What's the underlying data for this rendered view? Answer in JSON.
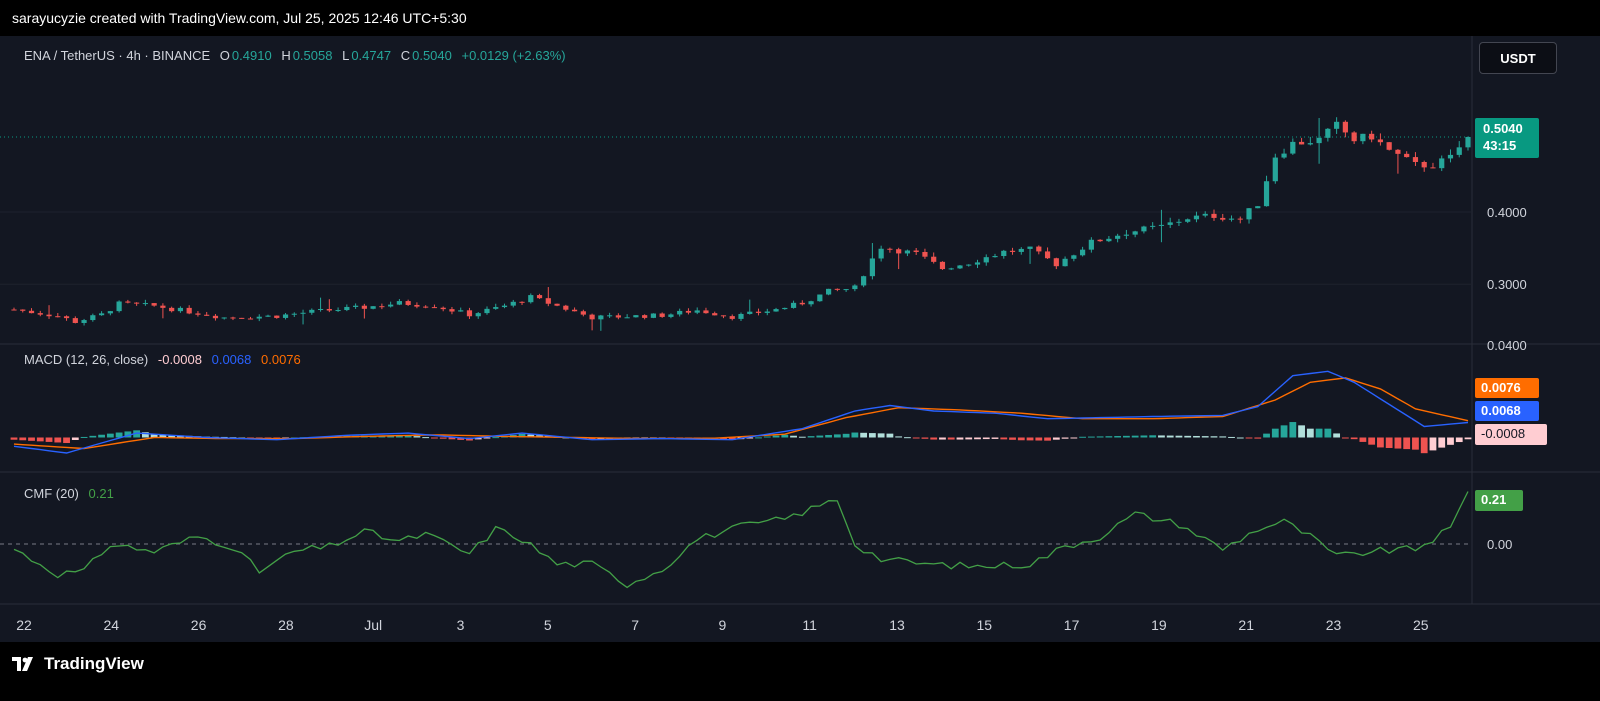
{
  "header": {
    "caption": "sarayucyzie created with TradingView.com, Jul 25, 2025 12:46 UTC+5:30"
  },
  "symbol_legend": {
    "symbol": "ENA / TetherUS · 4h · BINANCE",
    "open_label": "O",
    "open": "0.4910",
    "high_label": "H",
    "high": "0.5058",
    "low_label": "L",
    "low": "0.4747",
    "close_label": "C",
    "close": "0.5040",
    "change": "+0.0129 (+2.63%)"
  },
  "currency_button": "USDT",
  "price_tag": {
    "price": "0.5040",
    "countdown": "43:15"
  },
  "macd_legend": {
    "name": "MACD (12, 26, close)",
    "hist": "-0.0008",
    "macd": "0.0068",
    "signal": "0.0076"
  },
  "cmf_legend": {
    "name": "CMF (20)",
    "value": "0.21"
  },
  "footer": {
    "brand": "TradingView"
  },
  "colors": {
    "up": "#26a69a",
    "down": "#ef5350",
    "macd": "#2962ff",
    "signal": "#ff6d00",
    "cmf": "#43a047",
    "bg": "#131722"
  },
  "chart_data": [
    {
      "type": "candlestick",
      "title": "ENA / TetherUS · 4h · BINANCE",
      "price_axis_labels": [
        "0.4000",
        "0.3000"
      ],
      "ylim": [
        0.22,
        0.63
      ],
      "last_price": 0.504,
      "x_axis_labels": [
        "22",
        "24",
        "26",
        "28",
        "Jul",
        "3",
        "5",
        "7",
        "9",
        "11",
        "13",
        "15",
        "17",
        "19",
        "21",
        "23",
        "25"
      ],
      "close_anchors": [
        {
          "x": 0,
          "y": 0.265
        },
        {
          "x": 5,
          "y": 0.256
        },
        {
          "x": 7,
          "y": 0.248
        },
        {
          "x": 10,
          "y": 0.258
        },
        {
          "x": 12,
          "y": 0.273
        },
        {
          "x": 16,
          "y": 0.27
        },
        {
          "x": 20,
          "y": 0.262
        },
        {
          "x": 24,
          "y": 0.254
        },
        {
          "x": 30,
          "y": 0.256
        },
        {
          "x": 34,
          "y": 0.262
        },
        {
          "x": 40,
          "y": 0.268
        },
        {
          "x": 44,
          "y": 0.274
        },
        {
          "x": 48,
          "y": 0.27
        },
        {
          "x": 52,
          "y": 0.258
        },
        {
          "x": 56,
          "y": 0.27
        },
        {
          "x": 59,
          "y": 0.282
        },
        {
          "x": 62,
          "y": 0.27
        },
        {
          "x": 66,
          "y": 0.254
        },
        {
          "x": 74,
          "y": 0.257
        },
        {
          "x": 78,
          "y": 0.264
        },
        {
          "x": 82,
          "y": 0.255
        },
        {
          "x": 87,
          "y": 0.265
        },
        {
          "x": 90,
          "y": 0.274
        },
        {
          "x": 93,
          "y": 0.29
        },
        {
          "x": 96,
          "y": 0.295
        },
        {
          "x": 98,
          "y": 0.335
        },
        {
          "x": 99,
          "y": 0.352
        },
        {
          "x": 103,
          "y": 0.342
        },
        {
          "x": 106,
          "y": 0.322
        },
        {
          "x": 109,
          "y": 0.33
        },
        {
          "x": 113,
          "y": 0.345
        },
        {
          "x": 116,
          "y": 0.348
        },
        {
          "x": 119,
          "y": 0.328
        },
        {
          "x": 123,
          "y": 0.358
        },
        {
          "x": 127,
          "y": 0.372
        },
        {
          "x": 131,
          "y": 0.38
        },
        {
          "x": 134,
          "y": 0.392
        },
        {
          "x": 137,
          "y": 0.395
        },
        {
          "x": 140,
          "y": 0.39
        },
        {
          "x": 142,
          "y": 0.412
        },
        {
          "x": 144,
          "y": 0.478
        },
        {
          "x": 146,
          "y": 0.495
        },
        {
          "x": 149,
          "y": 0.5
        },
        {
          "x": 151,
          "y": 0.52
        },
        {
          "x": 153,
          "y": 0.5
        },
        {
          "x": 155,
          "y": 0.505
        },
        {
          "x": 157,
          "y": 0.485
        },
        {
          "x": 160,
          "y": 0.465
        },
        {
          "x": 162,
          "y": 0.465
        },
        {
          "x": 164,
          "y": 0.475
        },
        {
          "x": 166,
          "y": 0.504
        }
      ]
    },
    {
      "type": "line+bar",
      "title": "MACD (12, 26, close)",
      "series": [
        {
          "name": "MACD",
          "anchors": [
            {
              "x": 0,
              "y": -0.004
            },
            {
              "x": 6,
              "y": -0.007
            },
            {
              "x": 14,
              "y": 0.002
            },
            {
              "x": 22,
              "y": 0.0
            },
            {
              "x": 30,
              "y": -0.001
            },
            {
              "x": 38,
              "y": 0.001
            },
            {
              "x": 45,
              "y": 0.002
            },
            {
              "x": 52,
              "y": -0.0005
            },
            {
              "x": 58,
              "y": 0.002
            },
            {
              "x": 66,
              "y": -0.001
            },
            {
              "x": 74,
              "y": -0.0005
            },
            {
              "x": 82,
              "y": -0.001
            },
            {
              "x": 90,
              "y": 0.004
            },
            {
              "x": 96,
              "y": 0.012
            },
            {
              "x": 100,
              "y": 0.0145
            },
            {
              "x": 105,
              "y": 0.012
            },
            {
              "x": 112,
              "y": 0.011
            },
            {
              "x": 118,
              "y": 0.0085
            },
            {
              "x": 124,
              "y": 0.009
            },
            {
              "x": 130,
              "y": 0.0095
            },
            {
              "x": 138,
              "y": 0.01
            },
            {
              "x": 142,
              "y": 0.014
            },
            {
              "x": 146,
              "y": 0.028
            },
            {
              "x": 150,
              "y": 0.03
            },
            {
              "x": 153,
              "y": 0.025
            },
            {
              "x": 157,
              "y": 0.015
            },
            {
              "x": 161,
              "y": 0.005
            },
            {
              "x": 166,
              "y": 0.0068
            }
          ]
        },
        {
          "name": "Signal",
          "anchors": [
            {
              "x": 0,
              "y": -0.003
            },
            {
              "x": 8,
              "y": -0.005
            },
            {
              "x": 16,
              "y": 0.0
            },
            {
              "x": 24,
              "y": -0.0005
            },
            {
              "x": 32,
              "y": -0.0005
            },
            {
              "x": 40,
              "y": 0.0005
            },
            {
              "x": 48,
              "y": 0.0012
            },
            {
              "x": 56,
              "y": 0.0005
            },
            {
              "x": 64,
              "y": 0.0
            },
            {
              "x": 72,
              "y": -0.0005
            },
            {
              "x": 80,
              "y": -0.0003
            },
            {
              "x": 88,
              "y": 0.0015
            },
            {
              "x": 95,
              "y": 0.009
            },
            {
              "x": 101,
              "y": 0.0135
            },
            {
              "x": 108,
              "y": 0.0125
            },
            {
              "x": 115,
              "y": 0.011
            },
            {
              "x": 122,
              "y": 0.0085
            },
            {
              "x": 130,
              "y": 0.0085
            },
            {
              "x": 138,
              "y": 0.0095
            },
            {
              "x": 144,
              "y": 0.017
            },
            {
              "x": 148,
              "y": 0.025
            },
            {
              "x": 152,
              "y": 0.027
            },
            {
              "x": 156,
              "y": 0.022
            },
            {
              "x": 160,
              "y": 0.013
            },
            {
              "x": 166,
              "y": 0.0076
            }
          ]
        }
      ],
      "histogram": "MACD minus Signal",
      "last": {
        "hist": -0.0008,
        "macd": 0.0068,
        "signal": 0.0076
      },
      "price_axis_labels": [
        "0.0400"
      ]
    },
    {
      "type": "line",
      "title": "CMF (20)",
      "series": [
        {
          "name": "CMF",
          "anchors": [
            {
              "x": 0,
              "y": -0.02
            },
            {
              "x": 5,
              "y": -0.12
            },
            {
              "x": 8,
              "y": -0.11
            },
            {
              "x": 11,
              "y": 0.0
            },
            {
              "x": 16,
              "y": -0.03
            },
            {
              "x": 21,
              "y": 0.03
            },
            {
              "x": 25,
              "y": -0.01
            },
            {
              "x": 28,
              "y": -0.11
            },
            {
              "x": 32,
              "y": -0.03
            },
            {
              "x": 36,
              "y": -0.01
            },
            {
              "x": 40,
              "y": 0.05
            },
            {
              "x": 44,
              "y": 0.01
            },
            {
              "x": 47,
              "y": 0.04
            },
            {
              "x": 52,
              "y": -0.04
            },
            {
              "x": 55,
              "y": 0.06
            },
            {
              "x": 58,
              "y": 0.02
            },
            {
              "x": 62,
              "y": -0.08
            },
            {
              "x": 66,
              "y": -0.08
            },
            {
              "x": 70,
              "y": -0.16
            },
            {
              "x": 74,
              "y": -0.1
            },
            {
              "x": 78,
              "y": 0.02
            },
            {
              "x": 83,
              "y": 0.07
            },
            {
              "x": 88,
              "y": 0.1
            },
            {
              "x": 94,
              "y": 0.18
            },
            {
              "x": 96,
              "y": 0.0
            },
            {
              "x": 99,
              "y": -0.06
            },
            {
              "x": 104,
              "y": -0.08
            },
            {
              "x": 110,
              "y": -0.09
            },
            {
              "x": 116,
              "y": -0.08
            },
            {
              "x": 120,
              "y": -0.01
            },
            {
              "x": 124,
              "y": 0.03
            },
            {
              "x": 128,
              "y": 0.12
            },
            {
              "x": 133,
              "y": 0.08
            },
            {
              "x": 138,
              "y": -0.02
            },
            {
              "x": 142,
              "y": 0.06
            },
            {
              "x": 145,
              "y": 0.09
            },
            {
              "x": 148,
              "y": 0.03
            },
            {
              "x": 151,
              "y": -0.05
            },
            {
              "x": 155,
              "y": -0.03
            },
            {
              "x": 160,
              "y": -0.02
            },
            {
              "x": 164,
              "y": 0.06
            },
            {
              "x": 166,
              "y": 0.21
            }
          ]
        }
      ],
      "reference_line": 0.0,
      "price_axis_labels": [
        "0.00"
      ],
      "last": 0.21
    }
  ]
}
